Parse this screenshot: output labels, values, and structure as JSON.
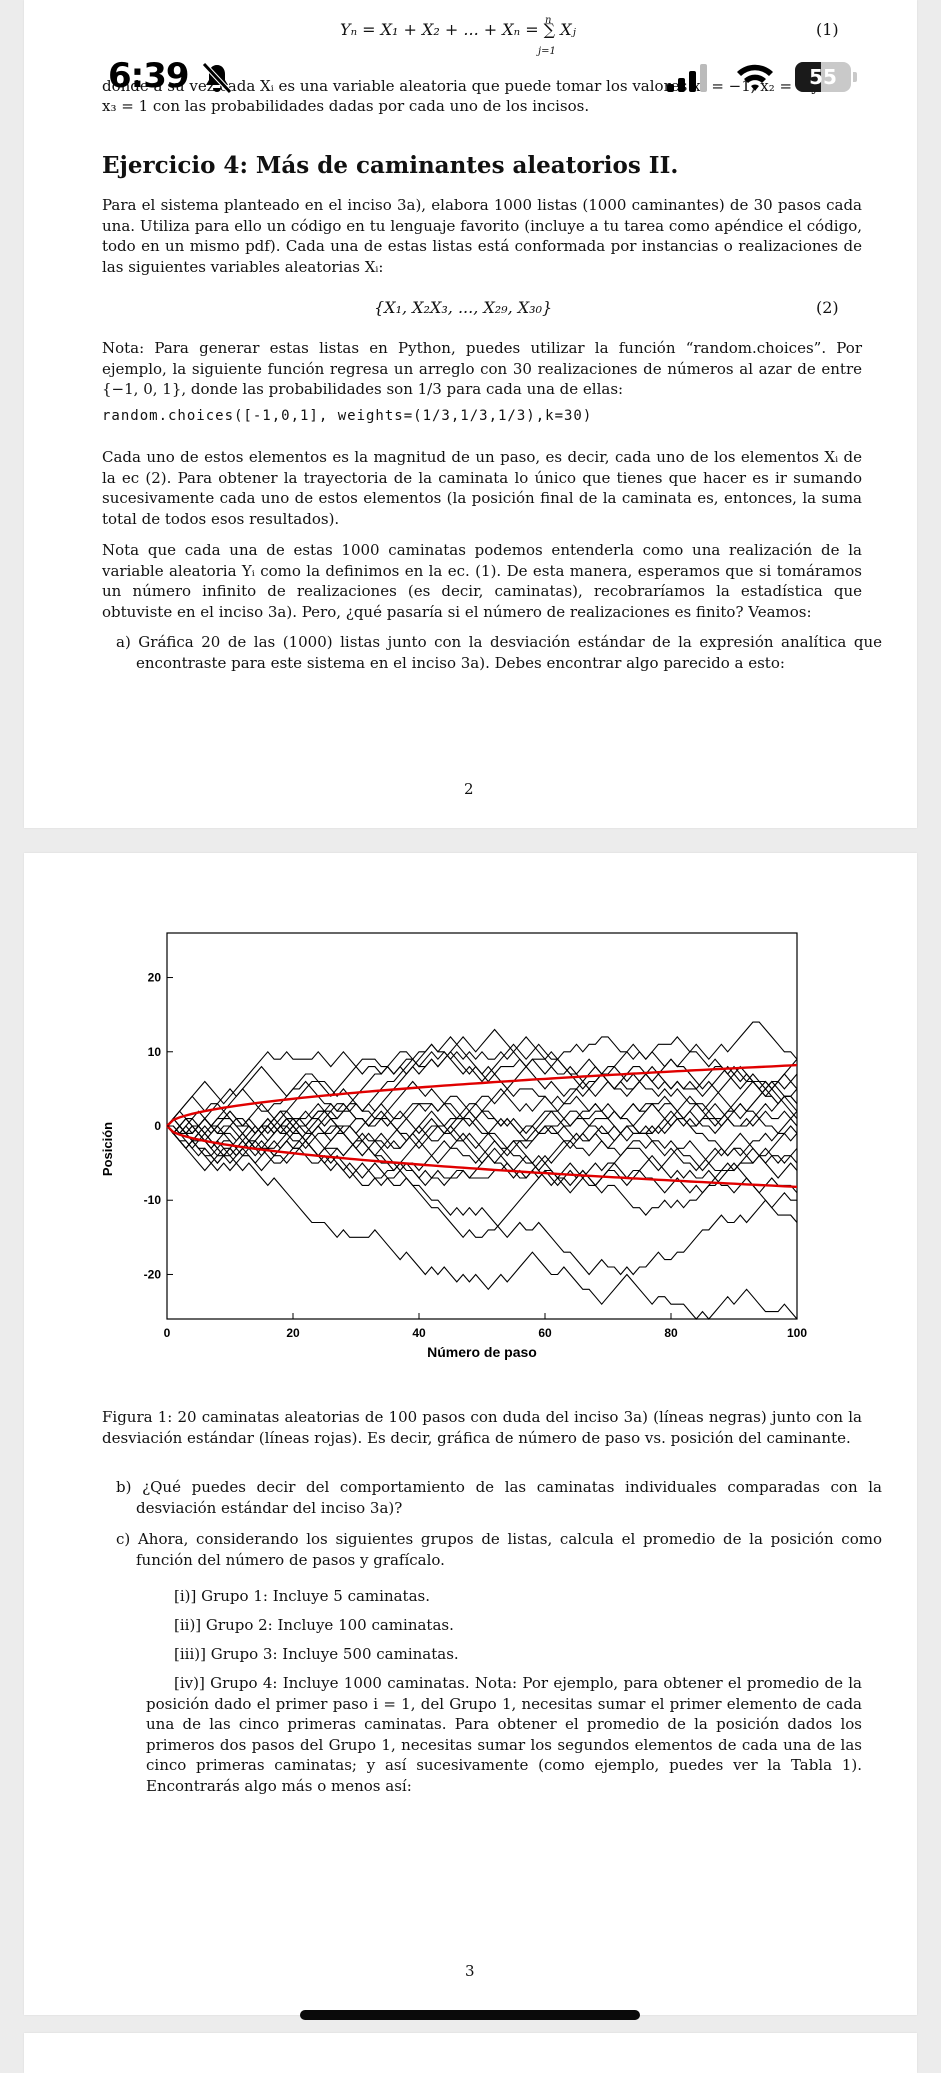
{
  "status_bar": {
    "time": "6:39",
    "battery": "55"
  },
  "page2": {
    "equation1": "Yₙ = X₁ + X₂ + ... + Xₙ = ∑ Xⱼ",
    "sum_top": "n",
    "sum_bottom": "j=1",
    "eq1_number": "(1)",
    "intro_line1": "donde a su vez cada Xᵢ es una variable aleatoria que puede tomar los valores x₁ = −1, x₂ = 0 y",
    "intro_line2": "x₃ = 1 con las probabilidades dadas por cada uno de los incisos.",
    "heading": "Ejercicio 4: Más de caminantes aleatorios II.",
    "para1": "Para el sistema planteado en el inciso 3a), elabora 1000 listas (1000 caminantes) de 30 pasos cada una. Utiliza para ello un código en tu lenguaje favorito (incluye a tu tarea como apéndice el código, todo en un mismo pdf). Cada una de estas listas está conformada por instancias o realizaciones de las siguientes variables aleatorias Xᵢ:",
    "equation2": "{X₁, X₂X₃, ..., X₂₉, X₃₀}",
    "eq2_number": "(2)",
    "para2": "Nota: Para generar estas listas en Python, puedes utilizar la función “random.choices”. Por ejemplo, la siguiente función regresa un arreglo con 30 realizaciones de números al azar de entre {−1, 0, 1}, donde las probabilidades son 1/3 para cada una de ellas:",
    "code": "random.choices([-1,0,1], weights=(1/3,1/3,1/3),k=30)",
    "para3": "Cada uno de estos elementos es la magnitud de un paso, es decir, cada uno de los elementos Xᵢ de la ec (2). Para obtener la trayectoria de la caminata lo único que tienes que hacer es ir sumando sucesivamente cada uno de estos elementos (la posición final de la caminata es, entonces, la suma total de todos esos resultados).",
    "para4": "Nota que cada una de estas 1000 caminatas podemos entenderla como una realización de la variable aleatoria Yᵢ como la definimos en la ec. (1). De esta manera, esperamos que si tomáramos un número infinito de realizaciones (es decir, caminatas), recobraríamos la estadística que obtuviste en el inciso 3a). Pero, ¿qué pasaría si el número de realizaciones es finito? Veamos:",
    "item_a": "a)  Gráfica 20 de las (1000) listas junto con la desviación estándar de la expresión analítica que encontraste para este sistema en el inciso 3a). Debes encontrar algo parecido a esto:",
    "page_number": "2"
  },
  "page3": {
    "caption": "Figura 1: 20 caminatas aleatorias de 100 pasos con duda del inciso 3a) (líneas negras) junto con la desviación estándar (líneas rojas). Es decir, gráfica de número de paso vs. posición del caminante.",
    "item_b": "b)  ¿Qué puedes decir del comportamiento de las caminatas individuales comparadas con la desviación estándar del inciso 3a)?",
    "item_c": "c)  Ahora, considerando los siguientes grupos de listas, calcula el promedio de la posición como función del número de pasos y grafícalo.",
    "group1": "[i)] Grupo 1: Incluye 5 caminatas.",
    "group2": "[ii)] Grupo 2: Incluye 100 caminatas.",
    "group3": "[iii)] Grupo 3: Incluye 500 caminatas.",
    "group4": "[iv)] Grupo 4: Incluye 1000 caminatas. Nota: Por ejemplo, para obtener el promedio de la posición dado el primer paso i = 1, del Grupo 1, necesitas sumar el primer elemento de cada una de las cinco primeras caminatas. Para obtener el promedio de la posición dados los primeros dos pasos del Grupo 1, necesitas sumar los segundos elementos de cada una de las cinco primeras caminatas; y así sucesivamente (como ejemplo, puedes ver la Tabla 1). Encontrarás algo más o menos así:",
    "page_number": "3"
  },
  "chart_data": {
    "type": "line",
    "xlabel": "Número de paso",
    "ylabel": "Posición",
    "xlim": [
      0,
      100
    ],
    "ylim": [
      -26,
      26
    ],
    "xticks": [
      0,
      20,
      40,
      60,
      80,
      100
    ],
    "yticks": [
      20,
      10,
      0,
      -10,
      -20
    ],
    "series_color_walks": "#000000",
    "series_color_std": "#e00000",
    "std_band": {
      "name": "desviación estándar",
      "a": 0.82,
      "form": "y = ±a·sqrt(x)"
    },
    "walk_finals": [
      -25,
      -14,
      -8,
      -6,
      -4,
      -2,
      0,
      1,
      2,
      3,
      4,
      5,
      6,
      7,
      8,
      9,
      -10,
      -3,
      2,
      -1
    ],
    "walk_count": 20,
    "steps": 100
  }
}
